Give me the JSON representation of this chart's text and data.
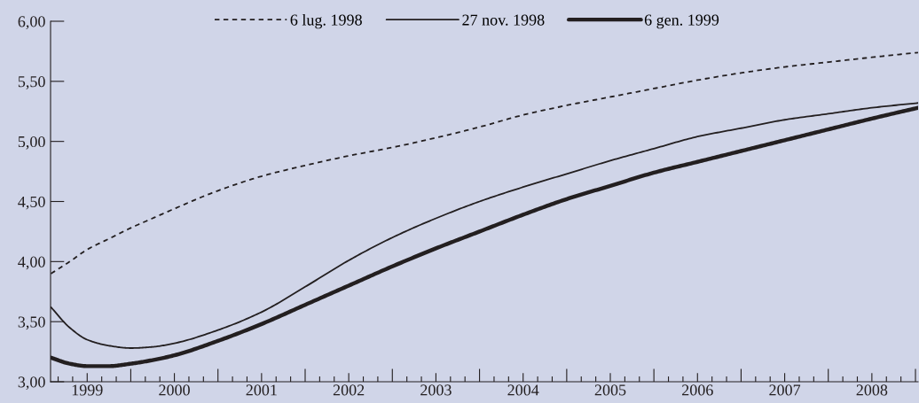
{
  "chart_data": {
    "type": "line",
    "x": [
      1999.085,
      1999.3,
      1999.5,
      1999.75,
      2000.0,
      2000.25,
      2000.5,
      2001.0,
      2001.5,
      2002.0,
      2002.5,
      2003.0,
      2003.5,
      2004.0,
      2004.5,
      2005.0,
      2005.5,
      2006.0,
      2006.5,
      2007.0,
      2007.5,
      2008.0,
      2008.5,
      2009.03
    ],
    "series": [
      {
        "name": "6 lug. 1998",
        "color": "#231f20",
        "line_style": "dashed",
        "values": [
          3.9,
          4.0,
          4.1,
          4.19,
          4.28,
          4.36,
          4.44,
          4.59,
          4.71,
          4.8,
          4.88,
          4.95,
          5.03,
          5.12,
          5.22,
          5.3,
          5.37,
          5.44,
          5.51,
          5.57,
          5.62,
          5.66,
          5.7,
          5.74
        ]
      },
      {
        "name": "27 nov. 1998",
        "color": "#231f20",
        "line_style": "solid",
        "values": [
          3.62,
          3.45,
          3.35,
          3.3,
          3.28,
          3.29,
          3.32,
          3.43,
          3.58,
          3.79,
          4.01,
          4.2,
          4.36,
          4.5,
          4.62,
          4.73,
          4.84,
          4.94,
          5.04,
          5.11,
          5.18,
          5.23,
          5.28,
          5.32
        ]
      },
      {
        "name": "6 gen. 1999",
        "color": "#231f20",
        "line_style": "solid",
        "values": [
          3.2,
          3.15,
          3.13,
          3.13,
          3.15,
          3.18,
          3.22,
          3.34,
          3.48,
          3.64,
          3.8,
          3.96,
          4.11,
          4.25,
          4.39,
          4.52,
          4.63,
          4.74,
          4.83,
          4.92,
          5.01,
          5.1,
          5.19,
          5.28
        ]
      }
    ],
    "xlim": [
      1999.08,
      2009.03
    ],
    "xticks": [
      {
        "value": 1999.1667,
        "label": null
      },
      {
        "value": 1999.3333,
        "label": null
      },
      {
        "value": 1999.5,
        "label": "1999"
      },
      {
        "value": 1999.6667,
        "label": null
      },
      {
        "value": 1999.8333,
        "label": null
      },
      {
        "value": 2000,
        "label": null
      },
      {
        "value": 2000.1667,
        "label": null
      },
      {
        "value": 2000.3333,
        "label": null
      },
      {
        "value": 2000.5,
        "label": "2000"
      },
      {
        "value": 2000.6667,
        "label": null
      },
      {
        "value": 2000.8333,
        "label": null
      },
      {
        "value": 2001,
        "label": null
      },
      {
        "value": 2001.1667,
        "label": null
      },
      {
        "value": 2001.3333,
        "label": null
      },
      {
        "value": 2001.5,
        "label": "2001"
      },
      {
        "value": 2001.6667,
        "label": null
      },
      {
        "value": 2001.8333,
        "label": null
      },
      {
        "value": 2002,
        "label": null
      },
      {
        "value": 2002.1667,
        "label": null
      },
      {
        "value": 2002.3333,
        "label": null
      },
      {
        "value": 2002.5,
        "label": "2002"
      },
      {
        "value": 2002.6667,
        "label": null
      },
      {
        "value": 2002.8333,
        "label": null
      },
      {
        "value": 2003,
        "label": null
      },
      {
        "value": 2003.1667,
        "label": null
      },
      {
        "value": 2003.3333,
        "label": null
      },
      {
        "value": 2003.5,
        "label": "2003"
      },
      {
        "value": 2003.6667,
        "label": null
      },
      {
        "value": 2003.8333,
        "label": null
      },
      {
        "value": 2004,
        "label": null
      },
      {
        "value": 2004.1667,
        "label": null
      },
      {
        "value": 2004.3333,
        "label": null
      },
      {
        "value": 2004.5,
        "label": "2004"
      },
      {
        "value": 2004.6667,
        "label": null
      },
      {
        "value": 2004.8333,
        "label": null
      },
      {
        "value": 2005,
        "label": null
      },
      {
        "value": 2005.1667,
        "label": null
      },
      {
        "value": 2005.3333,
        "label": null
      },
      {
        "value": 2005.5,
        "label": "2005"
      },
      {
        "value": 2005.6667,
        "label": null
      },
      {
        "value": 2005.8333,
        "label": null
      },
      {
        "value": 2006,
        "label": null
      },
      {
        "value": 2006.1667,
        "label": null
      },
      {
        "value": 2006.3333,
        "label": null
      },
      {
        "value": 2006.5,
        "label": "2006"
      },
      {
        "value": 2006.6667,
        "label": null
      },
      {
        "value": 2006.8333,
        "label": null
      },
      {
        "value": 2007,
        "label": null
      },
      {
        "value": 2007.1667,
        "label": null
      },
      {
        "value": 2007.3333,
        "label": null
      },
      {
        "value": 2007.5,
        "label": "2007"
      },
      {
        "value": 2007.6667,
        "label": null
      },
      {
        "value": 2007.8333,
        "label": null
      },
      {
        "value": 2008,
        "label": null
      },
      {
        "value": 2008.1667,
        "label": null
      },
      {
        "value": 2008.3333,
        "label": null
      },
      {
        "value": 2008.5,
        "label": "2008"
      },
      {
        "value": 2008.6667,
        "label": null
      },
      {
        "value": 2008.8333,
        "label": null
      },
      {
        "value": 2009,
        "label": null
      }
    ],
    "ylim": [
      3.0,
      6.0
    ],
    "yticks": [
      {
        "value": 3.0,
        "label": "3,00"
      },
      {
        "value": 3.5,
        "label": "3,50"
      },
      {
        "value": 4.0,
        "label": "4,00"
      },
      {
        "value": 4.5,
        "label": "4,50"
      },
      {
        "value": 5.0,
        "label": "5,00"
      },
      {
        "value": 5.5,
        "label": "5,50"
      },
      {
        "value": 6.0,
        "label": "6,00"
      }
    ],
    "grid": false,
    "legend": "top",
    "marker": "none"
  }
}
